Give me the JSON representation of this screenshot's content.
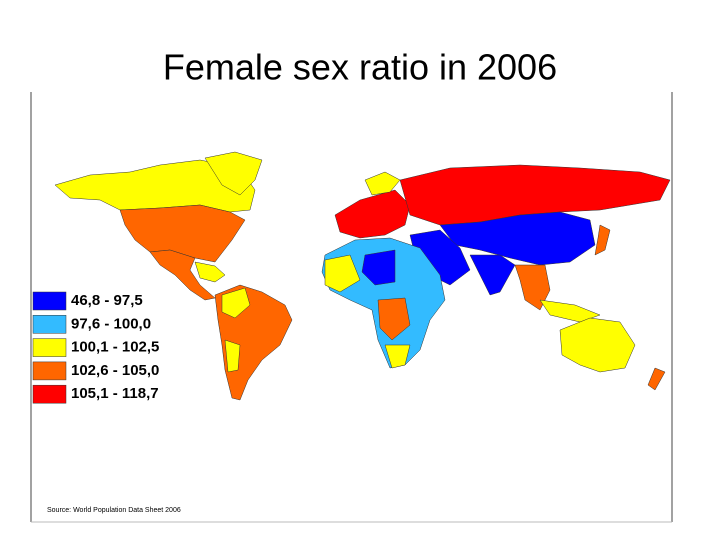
{
  "title": "Female sex ratio in 2006",
  "legend": [
    {
      "label": "46,8 - 97,5",
      "color": "#0000ff"
    },
    {
      "label": "97,6 - 100,0",
      "color": "#33bbff"
    },
    {
      "label": "100,1 - 102,5",
      "color": "#ffff00"
    },
    {
      "label": "102,6 - 105,0",
      "color": "#ff6600"
    },
    {
      "label": "105,1 - 118,7",
      "color": "#ff0000"
    }
  ],
  "source": "Source: World Population Data Sheet 2006"
}
